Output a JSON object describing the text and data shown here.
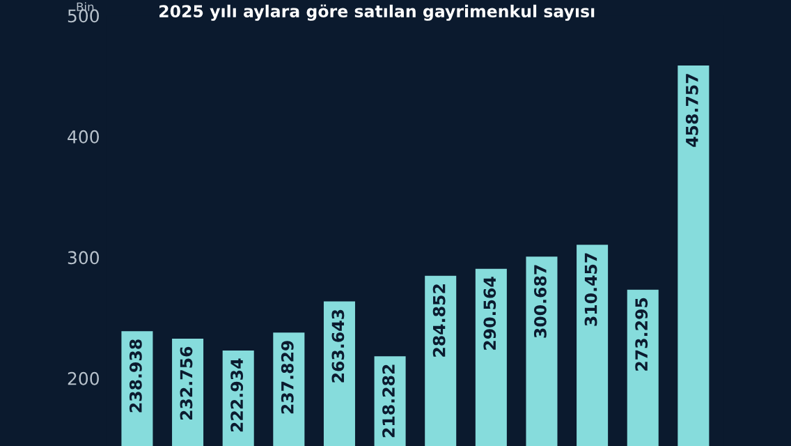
{
  "chart_data": {
    "type": "bar",
    "title": "2025 yılı aylara göre satılan gayrimenkul sayısı",
    "ylabel": "Bin",
    "categories": [
      null,
      null,
      null,
      null,
      null,
      null,
      null,
      null,
      null,
      null,
      null,
      null
    ],
    "values": [
      238.938,
      232.756,
      222.934,
      237.829,
      263.643,
      218.282,
      284.852,
      290.564,
      300.687,
      310.457,
      273.295,
      458.757
    ],
    "color": "#86dcdc",
    "ylim": [
      144,
      500
    ],
    "yticks": [
      200,
      300,
      400,
      500
    ],
    "grid": false,
    "data_labels": true
  }
}
